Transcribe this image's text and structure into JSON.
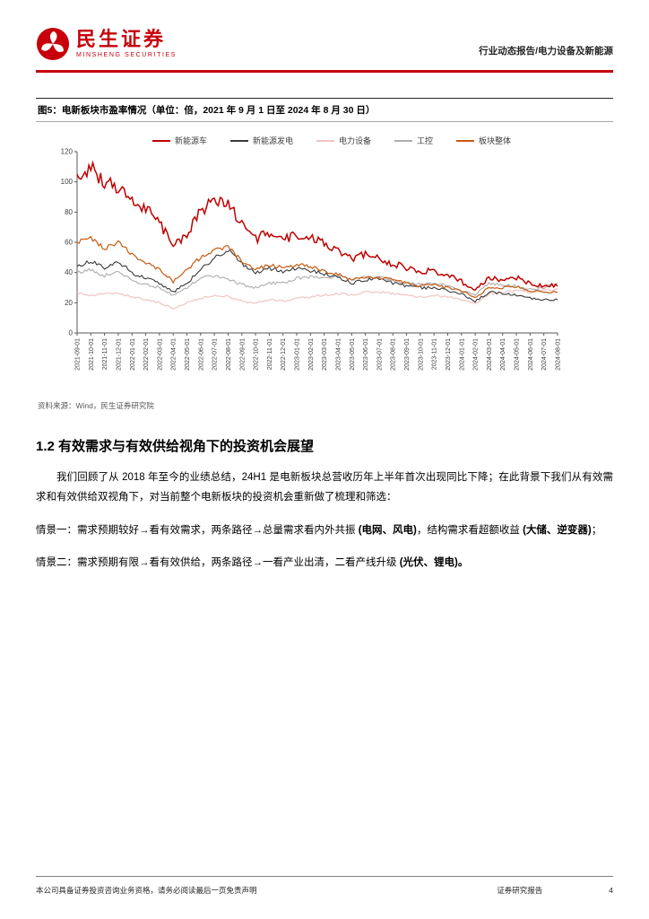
{
  "header": {
    "brand_cn": "民生证券",
    "brand_en": "MINSHENG SECURITIES",
    "category": "行业动态报告/电力设备及新能源"
  },
  "figure": {
    "title": "图5：电新板块市盈率情况（单位：倍，2021 年 9 月 1 日至 2024 年 8 月 30 日）",
    "source": "资料来源：Wind，民生证券研究院"
  },
  "chart_data": {
    "type": "line",
    "title": "电新板块市盈率情况（单位：倍）",
    "xlabel": "",
    "ylabel": "",
    "ylim": [
      0,
      120
    ],
    "yticks": [
      0,
      20,
      40,
      60,
      80,
      100,
      120
    ],
    "grid": false,
    "legend_position": "top",
    "x": [
      "2021-09-01",
      "2021-10-01",
      "2021-11-01",
      "2021-12-01",
      "2022-01-01",
      "2022-02-01",
      "2022-03-01",
      "2022-04-01",
      "2022-05-01",
      "2022-06-01",
      "2022-07-01",
      "2022-08-01",
      "2022-09-01",
      "2022-10-01",
      "2022-11-01",
      "2022-12-01",
      "2023-01-01",
      "2023-02-01",
      "2023-03-01",
      "2023-04-01",
      "2023-05-01",
      "2023-06-01",
      "2023-07-01",
      "2023-08-01",
      "2023-09-01",
      "2023-10-01",
      "2023-11-01",
      "2023-12-01",
      "2024-01-01",
      "2024-02-01",
      "2024-03-01",
      "2024-04-01",
      "2024-05-01",
      "2024-06-01",
      "2024-07-01",
      "2024-08-01"
    ],
    "series": [
      {
        "name": "新能源车",
        "color": "#c00000",
        "values": [
          105,
          110,
          100,
          95,
          88,
          82,
          73,
          57,
          66,
          80,
          88,
          86,
          71,
          62,
          67,
          62,
          65,
          64,
          59,
          54,
          49,
          52,
          49,
          46,
          43,
          41,
          41,
          38,
          34,
          28,
          36,
          35,
          37,
          33,
          31,
          31
        ]
      },
      {
        "name": "新能源发电",
        "color": "#3a3a3a",
        "values": [
          44,
          48,
          43,
          47,
          40,
          36,
          33,
          27,
          33,
          42,
          50,
          55,
          46,
          40,
          43,
          41,
          43,
          41,
          39,
          37,
          33,
          35,
          36,
          33,
          31,
          30,
          30,
          28,
          26,
          21,
          27,
          26,
          25,
          23,
          22,
          22
        ]
      },
      {
        "name": "电力设备",
        "color": "#f2c4c4",
        "values": [
          27,
          25,
          26,
          26,
          24,
          22,
          20,
          16,
          20,
          23,
          25,
          24,
          21,
          20,
          22,
          21,
          23,
          24,
          25,
          26,
          25,
          27,
          27,
          26,
          25,
          24,
          25,
          24,
          22,
          19,
          26,
          27,
          28,
          27,
          28,
          29
        ]
      },
      {
        "name": "工控",
        "color": "#adadad",
        "values": [
          40,
          42,
          38,
          40,
          35,
          32,
          30,
          25,
          30,
          36,
          38,
          36,
          32,
          30,
          33,
          33,
          36,
          37,
          36,
          38,
          35,
          37,
          37,
          35,
          33,
          32,
          33,
          31,
          28,
          25,
          33,
          32,
          31,
          29,
          30,
          33
        ]
      },
      {
        "name": "板块整体",
        "color": "#c55a11",
        "values": [
          60,
          63,
          56,
          60,
          52,
          47,
          42,
          34,
          42,
          50,
          55,
          57,
          48,
          42,
          45,
          43,
          45,
          44,
          41,
          39,
          35,
          37,
          37,
          35,
          33,
          31,
          32,
          30,
          28,
          23,
          30,
          30,
          31,
          28,
          27,
          27
        ]
      }
    ]
  },
  "section": {
    "heading": "1.2 有效需求与有效供给视角下的投资机会展望"
  },
  "paragraphs": [
    {
      "indent": true,
      "segments": [
        {
          "text": "我们回顾了从 2018 年至今的业绩总结，24H1 是电新板块总营收历年上半年首次出现同比下降；在此背景下我们从有效需求和有效供给双视角下，对当前整个电新板块的投资机会重新做了梳理和筛选：",
          "bold": false
        }
      ]
    },
    {
      "indent": false,
      "segments": [
        {
          "text": "情景一：需求预期较好→看有效需求，两条路径→总量需求看内外共振 ",
          "bold": false
        },
        {
          "text": "(电网、风电)",
          "bold": true
        },
        {
          "text": "，结构需求看超额收益 ",
          "bold": false
        },
        {
          "text": "(大储、逆变器)",
          "bold": true
        },
        {
          "text": "；",
          "bold": false
        }
      ]
    },
    {
      "indent": false,
      "segments": [
        {
          "text": "情景二：需求预期有限→看有效供给，两条路径→一看产业出清，二看产线升级 ",
          "bold": false
        },
        {
          "text": "(光伏、锂电)。",
          "bold": true
        }
      ]
    }
  ],
  "footer": {
    "disclaimer": "本公司具备证券投资咨询业务资格，请务必阅读最后一页免责声明",
    "report_type": "证券研究报告",
    "page_number": "4"
  }
}
